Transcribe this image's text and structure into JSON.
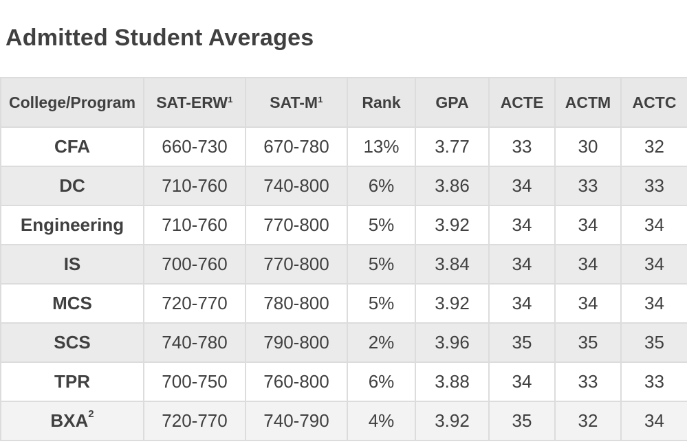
{
  "title": "Admitted Student Averages",
  "table": {
    "headers": [
      "College/Program",
      "SAT-ERW¹",
      "SAT-M¹",
      "Rank",
      "GPA",
      "ACTE",
      "ACTM",
      "ACTC"
    ],
    "rows": [
      {
        "program": "CFA",
        "sup": "",
        "cells": [
          "660-730",
          "670-780",
          "13%",
          "3.77",
          "33",
          "30",
          "32"
        ]
      },
      {
        "program": "DC",
        "sup": "",
        "cells": [
          "710-760",
          "740-800",
          "6%",
          "3.86",
          "34",
          "33",
          "33"
        ]
      },
      {
        "program": "Engineering",
        "sup": "",
        "cells": [
          "710-760",
          "770-800",
          "5%",
          "3.92",
          "34",
          "34",
          "34"
        ]
      },
      {
        "program": "IS",
        "sup": "",
        "cells": [
          "700-760",
          "770-800",
          "5%",
          "3.84",
          "34",
          "34",
          "34"
        ]
      },
      {
        "program": "MCS",
        "sup": "",
        "cells": [
          "720-770",
          "780-800",
          "5%",
          "3.92",
          "34",
          "34",
          "34"
        ]
      },
      {
        "program": "SCS",
        "sup": "",
        "cells": [
          "740-780",
          "790-800",
          "2%",
          "3.96",
          "35",
          "35",
          "35"
        ]
      },
      {
        "program": "TPR",
        "sup": "",
        "cells": [
          "700-750",
          "760-800",
          "6%",
          "3.88",
          "34",
          "33",
          "33"
        ]
      },
      {
        "program": "BXA",
        "sup": "2",
        "cells": [
          "720-770",
          "740-790",
          "4%",
          "3.92",
          "35",
          "32",
          "34"
        ]
      }
    ]
  }
}
